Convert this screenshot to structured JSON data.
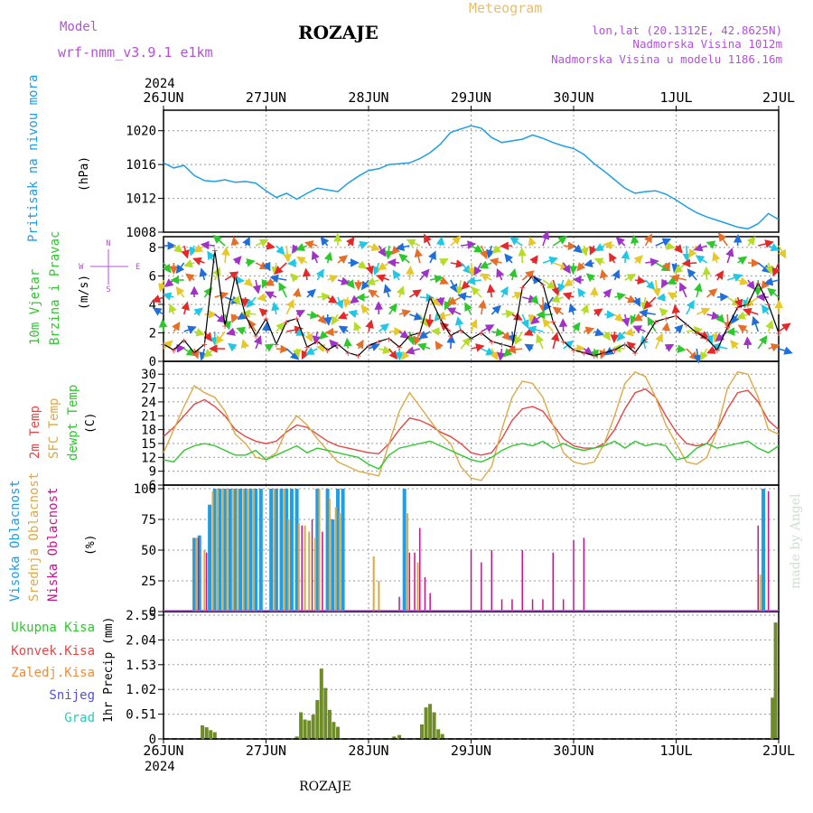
{
  "header": {
    "model_label": "Model",
    "model_name": "wrf-nmm_v3.9.1 e1km",
    "station": "ROZAJE",
    "title": "Meteogram",
    "coords": "lon,lat (20.1312E, 42.8625N)",
    "elevation": "Nadmorska Visina 1012m",
    "model_elevation": "Nadmorska Visina u modelu 1186.16m",
    "watermark": "made by Angel",
    "footer_station": "ROZAJE"
  },
  "colors": {
    "pressure": "#1e9ee6",
    "temp2m": "#e64646",
    "sfc": "#dcaa46",
    "dewpt": "#2ec82e",
    "high_cloud": "#1e9ee6",
    "mid_cloud": "#dcaa46",
    "low_cloud": "#c8148c",
    "total_precip": "#2ec82e",
    "conv_precip": "#e64646",
    "frz_precip": "#f08c3c",
    "snow": "#5050dc",
    "graupel": "#32c8b4",
    "purple_text": "#b450dc",
    "gold_text": "#e6be6e"
  },
  "chart_data": [
    {
      "type": "line",
      "panel": "pressure",
      "ylabel_var": "Pritisak na nivou mora",
      "ylabel_unit": "(hPa)",
      "top_year": "2024",
      "x_ticks": [
        "26JUN",
        "27JUN",
        "28JUN",
        "29JUN",
        "30JUN",
        "1JUL",
        "2JUL"
      ],
      "ylim": [
        1008,
        1022
      ],
      "yticks": [
        "1008",
        "1012",
        "1016",
        "1020"
      ],
      "grid": true,
      "x": [
        0,
        0.1,
        0.2,
        0.3,
        0.4,
        0.5,
        0.6,
        0.7,
        0.8,
        0.9,
        1.0,
        1.1,
        1.2,
        1.3,
        1.4,
        1.5,
        1.6,
        1.7,
        1.8,
        1.9,
        2.0,
        2.1,
        2.2,
        2.3,
        2.4,
        2.5,
        2.6,
        2.7,
        2.8,
        2.9,
        3.0,
        3.1,
        3.2,
        3.3,
        3.4,
        3.5,
        3.6,
        3.7,
        3.8,
        3.9,
        4.0,
        4.1,
        4.2,
        4.3,
        4.4,
        4.5,
        4.6,
        4.7,
        4.8,
        4.9,
        5.0,
        5.1,
        5.2,
        5.3,
        5.4,
        5.5,
        5.6,
        5.7,
        5.8,
        5.9,
        6.0
      ],
      "values": [
        1016.2,
        1015.6,
        1015.9,
        1014.7,
        1014.1,
        1014.0,
        1014.2,
        1013.9,
        1014.0,
        1013.8,
        1012.9,
        1012.1,
        1012.6,
        1011.9,
        1012.6,
        1013.2,
        1013.0,
        1012.8,
        1013.8,
        1014.6,
        1015.3,
        1015.5,
        1016.0,
        1016.1,
        1016.2,
        1016.7,
        1017.4,
        1018.4,
        1019.8,
        1020.2,
        1020.6,
        1020.3,
        1019.2,
        1018.6,
        1018.8,
        1019.0,
        1019.5,
        1019.1,
        1018.6,
        1018.2,
        1017.9,
        1017.2,
        1016.1,
        1015.2,
        1014.2,
        1013.2,
        1012.6,
        1012.8,
        1012.9,
        1012.5,
        1011.8,
        1011.0,
        1010.3,
        1009.8,
        1009.4,
        1009.0,
        1008.6,
        1008.4,
        1009.0,
        1010.2,
        1009.5
      ]
    },
    {
      "type": "line",
      "panel": "wind",
      "ylabel_var1": "10m Vjetar",
      "ylabel_var2": "Brzina i Pravac",
      "ylabel_unit": "(m/s)",
      "compass": {
        "w": "W",
        "e": "E",
        "n": "N",
        "s": "S"
      },
      "ylim": [
        0,
        8.5
      ],
      "yticks": [
        "0",
        "2",
        "4",
        "6",
        "8"
      ],
      "grid": true,
      "series": [
        {
          "x": [
            0,
            0.1,
            0.2,
            0.3,
            0.4,
            0.5,
            0.6,
            0.7,
            0.8,
            0.9,
            1.0,
            1.1,
            1.2,
            1.3,
            1.4,
            1.5,
            1.6,
            1.7,
            1.8,
            1.9,
            2.0,
            2.1,
            2.2,
            2.3,
            2.4,
            2.5,
            2.6,
            2.7,
            2.8,
            2.9,
            3.0,
            3.1,
            3.2,
            3.3,
            3.4,
            3.5,
            3.6,
            3.7,
            3.8,
            3.9,
            4.0,
            4.1,
            4.2,
            4.3,
            4.4,
            4.5,
            4.6,
            4.7,
            4.8,
            4.9,
            5.0,
            5.1,
            5.2,
            5.3,
            5.4,
            5.5,
            5.6,
            5.7,
            5.8,
            5.9,
            6.0
          ],
          "values": [
            1.2,
            0.8,
            1.5,
            0.6,
            1.2,
            7.8,
            2.5,
            6.0,
            3.2,
            1.8,
            3.0,
            1.2,
            2.8,
            3.0,
            1.0,
            1.4,
            0.8,
            1.2,
            0.6,
            0.4,
            1.1,
            1.4,
            1.6,
            1.0,
            1.8,
            2.0,
            4.5,
            3.0,
            1.8,
            2.2,
            1.6,
            2.0,
            1.4,
            1.2,
            1.0,
            5.2,
            6.0,
            5.4,
            2.8,
            1.4,
            0.8,
            0.6,
            0.4,
            0.6,
            0.8,
            1.2,
            0.6,
            1.6,
            2.8,
            3.0,
            3.2,
            2.6,
            2.0,
            1.6,
            0.8,
            2.4,
            3.8,
            4.0,
            5.5,
            4.0,
            2.0
          ]
        }
      ]
    },
    {
      "type": "line",
      "panel": "temperature",
      "ylabel_var1": "2m Temp",
      "ylabel_var2": "SFC Temp",
      "ylabel_var3": "dewpt Temp",
      "ylabel_unit": "(C)",
      "ylim": [
        6,
        32
      ],
      "yticks": [
        "6",
        "9",
        "12",
        "15",
        "18",
        "21",
        "24",
        "27",
        "30"
      ],
      "grid": true,
      "x": [
        0,
        0.1,
        0.2,
        0.3,
        0.4,
        0.5,
        0.6,
        0.7,
        0.8,
        0.9,
        1.0,
        1.1,
        1.2,
        1.3,
        1.4,
        1.5,
        1.6,
        1.7,
        1.8,
        1.9,
        2.0,
        2.1,
        2.2,
        2.3,
        2.4,
        2.5,
        2.6,
        2.7,
        2.8,
        2.9,
        3.0,
        3.1,
        3.2,
        3.3,
        3.4,
        3.5,
        3.6,
        3.7,
        3.8,
        3.9,
        4.0,
        4.1,
        4.2,
        4.3,
        4.4,
        4.5,
        4.6,
        4.7,
        4.8,
        4.9,
        5.0,
        5.1,
        5.2,
        5.3,
        5.4,
        5.5,
        5.6,
        5.7,
        5.8,
        5.9,
        6.0
      ],
      "series": [
        {
          "name": "2m",
          "values": [
            16.5,
            18.5,
            21.0,
            23.5,
            24.5,
            23.0,
            21.0,
            18.0,
            16.5,
            15.5,
            15.0,
            15.5,
            17.5,
            19.0,
            18.5,
            17.0,
            15.5,
            14.5,
            14.0,
            13.5,
            13.0,
            12.8,
            15.0,
            18.0,
            20.5,
            20.0,
            19.0,
            17.5,
            16.5,
            15.0,
            13.0,
            12.5,
            13.0,
            16.0,
            20.0,
            22.5,
            23.0,
            22.0,
            19.0,
            16.0,
            14.5,
            14.0,
            14.0,
            15.0,
            18.0,
            22.5,
            26.0,
            26.8,
            25.0,
            21.0,
            17.5,
            15.0,
            14.5,
            15.0,
            18.0,
            22.5,
            26.0,
            26.5,
            24.0,
            20.0,
            18.0
          ]
        },
        {
          "name": "sfc",
          "values": [
            13.0,
            18.0,
            23.0,
            27.5,
            26.0,
            25.0,
            22.0,
            17.0,
            15.0,
            12.0,
            11.5,
            13.0,
            18.0,
            21.0,
            19.0,
            16.0,
            13.5,
            11.0,
            10.0,
            9.0,
            8.5,
            8.0,
            15.0,
            22.0,
            26.0,
            23.0,
            20.0,
            17.0,
            15.0,
            10.0,
            7.5,
            7.0,
            10.0,
            18.0,
            25.0,
            28.5,
            28.0,
            25.0,
            19.0,
            13.0,
            11.0,
            10.5,
            11.0,
            15.0,
            21.0,
            28.0,
            30.5,
            29.5,
            25.0,
            19.0,
            15.0,
            11.0,
            10.5,
            12.0,
            18.0,
            27.0,
            30.5,
            30.0,
            25.0,
            18.0,
            17.0
          ]
        },
        {
          "name": "dewpt",
          "values": [
            11.5,
            11.0,
            13.5,
            14.5,
            15.0,
            14.5,
            13.5,
            12.5,
            12.5,
            13.5,
            11.5,
            12.5,
            13.5,
            14.5,
            13.0,
            14.0,
            13.5,
            13.0,
            12.5,
            12.0,
            10.5,
            9.5,
            12.5,
            14.0,
            14.5,
            15.0,
            15.5,
            14.5,
            13.5,
            12.5,
            11.5,
            11.0,
            12.0,
            13.5,
            14.5,
            15.0,
            14.5,
            15.5,
            14.0,
            15.0,
            14.0,
            13.5,
            14.0,
            14.5,
            15.5,
            14.0,
            15.5,
            14.5,
            15.0,
            14.5,
            11.5,
            12.0,
            14.0,
            15.0,
            14.0,
            14.5,
            15.0,
            15.5,
            14.0,
            13.0,
            14.5
          ]
        }
      ]
    },
    {
      "type": "bar",
      "panel": "cloud",
      "ylabel_var1": "Visoka Oblacnost",
      "ylabel_var2": "Srednja Oblacnost",
      "ylabel_var3": "Niska Oblacnost",
      "ylabel_unit": "(%)",
      "ylim": [
        0,
        100
      ],
      "yticks": [
        "0",
        "25",
        "50",
        "75",
        "100"
      ],
      "grid": true,
      "series": [
        {
          "name": "high",
          "x": [
            0.3,
            0.35,
            0.45,
            0.5,
            0.55,
            0.6,
            0.65,
            0.7,
            0.75,
            0.8,
            0.85,
            0.9,
            0.95,
            1.05,
            1.1,
            1.15,
            1.2,
            1.25,
            1.3,
            1.5,
            1.6,
            1.65,
            1.7,
            1.75,
            2.35,
            5.85
          ],
          "values": [
            60,
            62,
            87,
            100,
            100,
            100,
            100,
            100,
            100,
            100,
            100,
            100,
            100,
            100,
            100,
            100,
            100,
            100,
            100,
            100,
            100,
            75,
            100,
            100,
            100,
            100
          ]
        },
        {
          "name": "mid",
          "x": [
            0.32,
            0.4,
            0.48,
            0.52,
            0.58,
            0.62,
            0.68,
            0.72,
            0.78,
            0.82,
            0.88,
            1.08,
            1.18,
            1.22,
            1.32,
            1.38,
            1.42,
            1.48,
            1.52,
            1.62,
            1.68,
            1.72,
            2.05,
            2.1,
            2.38,
            2.48,
            5.82
          ],
          "values": [
            60,
            50,
            98,
            100,
            100,
            100,
            100,
            100,
            100,
            100,
            100,
            100,
            100,
            75,
            72,
            70,
            65,
            60,
            100,
            92,
            85,
            80,
            45,
            25,
            80,
            40,
            30
          ]
        },
        {
          "name": "low",
          "x": [
            0.34,
            0.42,
            1.35,
            1.45,
            1.55,
            2.3,
            2.4,
            2.45,
            2.5,
            2.55,
            2.6,
            3.0,
            3.1,
            3.2,
            3.3,
            3.4,
            3.5,
            3.6,
            3.7,
            3.8,
            3.9,
            4.0,
            4.1,
            5.8,
            5.9
          ],
          "values": [
            60,
            48,
            70,
            75,
            65,
            12,
            48,
            48,
            68,
            28,
            15,
            50,
            40,
            50,
            10,
            10,
            50,
            10,
            10,
            48,
            10,
            58,
            60,
            70,
            98
          ]
        }
      ]
    },
    {
      "type": "bar",
      "panel": "precip",
      "legend": [
        "Ukupna Kisa",
        "Konvek.Kisa",
        "Zaledj.Kisa",
        "Snijeg",
        "Grad"
      ],
      "ylabel": "1hr Precip (mm)",
      "ylim": [
        0,
        2.55
      ],
      "yticks": [
        "0",
        "0.51",
        "1.02",
        "1.53",
        "2.04",
        "2.55"
      ],
      "grid": true,
      "bottom_year": "2024",
      "series": [
        {
          "name": "total",
          "x": [
            0.38,
            0.42,
            0.46,
            0.5,
            1.3,
            1.34,
            1.38,
            1.42,
            1.46,
            1.5,
            1.54,
            1.58,
            1.62,
            1.66,
            1.7,
            2.25,
            2.3,
            2.52,
            2.56,
            2.6,
            2.64,
            2.68,
            2.72,
            5.94,
            5.97
          ],
          "values": [
            0.28,
            0.24,
            0.18,
            0.14,
            0.05,
            0.55,
            0.4,
            0.38,
            0.5,
            0.8,
            1.45,
            1.05,
            0.6,
            0.35,
            0.25,
            0.05,
            0.08,
            0.3,
            0.65,
            0.72,
            0.55,
            0.2,
            0.1,
            0.85,
            2.4
          ]
        }
      ]
    }
  ]
}
